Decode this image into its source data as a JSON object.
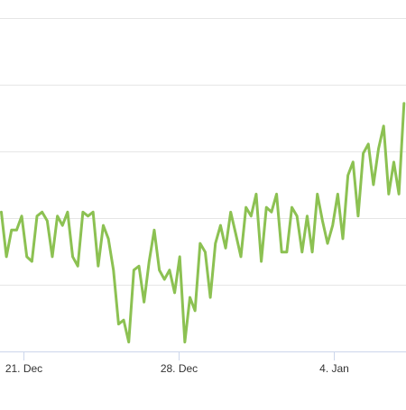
{
  "chart_data": {
    "type": "line",
    "x": [
      20,
      20.23,
      20.46,
      20.69,
      20.92,
      21.15,
      21.38,
      21.61,
      21.84,
      22.07,
      22.3,
      22.53,
      22.76,
      22.99,
      23.22,
      23.45,
      23.68,
      23.91,
      24.14,
      24.37,
      24.6,
      24.83,
      25.06,
      25.29,
      25.52,
      25.75,
      25.98,
      26.21,
      26.44,
      26.67,
      26.9,
      27.13,
      27.36,
      27.59,
      27.82,
      28.05,
      28.28,
      28.51,
      28.74,
      28.97,
      29.2,
      29.43,
      29.66,
      29.89,
      30.12,
      30.35,
      30.58,
      30.81,
      31.04,
      31.27,
      31.5,
      31.73,
      31.96,
      32.19,
      32.42,
      32.65,
      32.88,
      33.11,
      33.34,
      33.57,
      33.8,
      34.03,
      34.26,
      34.49,
      34.72,
      34.95,
      35.18,
      35.41,
      35.64,
      35.87,
      36.1,
      36.33,
      36.56,
      36.79,
      37.02,
      37.25,
      37.48,
      37.71,
      37.94,
      38.17
    ],
    "series": [
      {
        "color": "#8cc152",
        "values": [
          2.09,
          1.42,
          1.82,
          1.82,
          2.03,
          1.42,
          1.35,
          2.03,
          2.09,
          1.96,
          1.42,
          2.03,
          1.89,
          2.09,
          1.42,
          1.28,
          2.09,
          2.03,
          2.09,
          1.28,
          1.89,
          1.69,
          1.22,
          0.41,
          0.47,
          0.14,
          1.22,
          1.28,
          0.74,
          1.35,
          1.82,
          1.22,
          1.08,
          1.22,
          0.88,
          1.42,
          0.14,
          0.81,
          0.61,
          1.62,
          1.49,
          0.81,
          1.62,
          1.89,
          1.55,
          2.09,
          1.76,
          1.42,
          2.16,
          2.03,
          2.36,
          1.35,
          2.16,
          2.09,
          2.36,
          1.49,
          1.49,
          2.16,
          2.03,
          1.49,
          2.03,
          1.49,
          2.36,
          1.96,
          1.62,
          1.89,
          2.36,
          1.69,
          2.64,
          2.84,
          2.03,
          2.97,
          3.11,
          2.5,
          3.04,
          3.38,
          2.36,
          2.84,
          2.36,
          3.72
        ]
      }
    ],
    "xlim": [
      19.94,
      38.26
    ],
    "xticks": [
      {
        "value": 21,
        "label": "21. Dec"
      },
      {
        "value": 28,
        "label": "28. Dec"
      },
      {
        "value": 35,
        "label": "4. Jan"
      }
    ],
    "ylim": [
      0,
      5.27
    ],
    "yticks": [
      1,
      2,
      3,
      4,
      5
    ],
    "grid": true
  }
}
